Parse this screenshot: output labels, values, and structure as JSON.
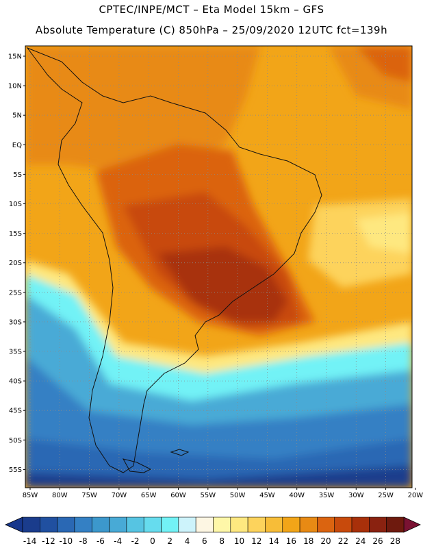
{
  "header": {
    "title_line1": "CPTEC/INPE/MCT –   Eta Model 15km – GFS",
    "title_line2": "Absolute Temperature (C) 850hPa – 25/09/2020 12UTC fct=139h"
  },
  "map": {
    "lat_labels": [
      "15N",
      "10N",
      "5N",
      "EQ",
      "5S",
      "10S",
      "15S",
      "20S",
      "25S",
      "30S",
      "35S",
      "40S",
      "45S",
      "50S",
      "55S"
    ],
    "lon_labels": [
      "85W",
      "80W",
      "75W",
      "70W",
      "65W",
      "60W",
      "55W",
      "50W",
      "45W",
      "40W",
      "35W",
      "30W",
      "25W",
      "20W"
    ]
  },
  "colorbar": {
    "labels": [
      "-14",
      "-12",
      "-10",
      "-8",
      "-6",
      "-4",
      "-2",
      "0",
      "2",
      "4",
      "6",
      "8",
      "10",
      "12",
      "14",
      "16",
      "18",
      "20",
      "22",
      "24",
      "26",
      "28"
    ],
    "colors": [
      "#1a3c8c",
      "#2050a0",
      "#2a68b4",
      "#3480c4",
      "#3c98cc",
      "#48aad6",
      "#56c4e2",
      "#66dcee",
      "#72f2f6",
      "#cdf3fb",
      "#fdf6e3",
      "#fef7a8",
      "#fee880",
      "#fdd35c",
      "#f7bd38",
      "#f2a518",
      "#e88a14",
      "#db6410",
      "#c84a0c",
      "#a8300a",
      "#8a2210",
      "#6e1a0e"
    ],
    "low_end_color": "#16368c",
    "high_end_color": "#7a1232"
  }
}
